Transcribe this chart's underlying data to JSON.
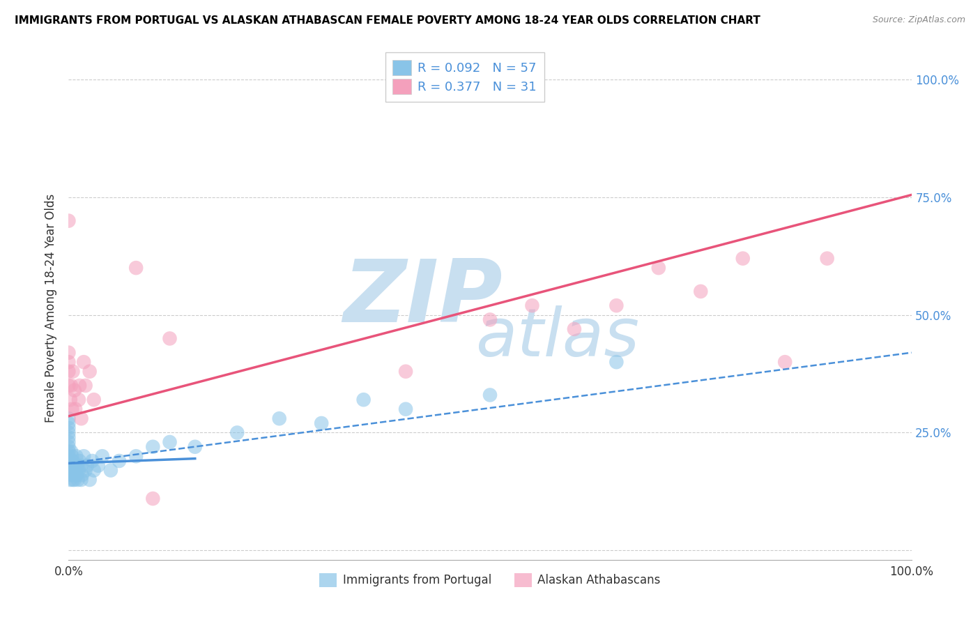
{
  "title": "IMMIGRANTS FROM PORTUGAL VS ALASKAN ATHABASCAN FEMALE POVERTY AMONG 18-24 YEAR OLDS CORRELATION CHART",
  "source": "Source: ZipAtlas.com",
  "ylabel": "Female Poverty Among 18-24 Year Olds",
  "xlim": [
    0,
    1.0
  ],
  "ylim": [
    -0.02,
    1.05
  ],
  "blue_color": "#89C4E8",
  "pink_color": "#F4A0BC",
  "blue_line_color": "#4A90D9",
  "pink_line_color": "#E8547A",
  "legend_R_blue": "R = 0.092",
  "legend_N_blue": "N = 57",
  "legend_R_pink": "R = 0.377",
  "legend_N_pink": "N = 31",
  "blue_scatter_x": [
    0.0,
    0.0,
    0.0,
    0.0,
    0.0,
    0.0,
    0.0,
    0.0,
    0.0,
    0.0,
    0.0,
    0.002,
    0.002,
    0.003,
    0.003,
    0.003,
    0.004,
    0.004,
    0.005,
    0.005,
    0.005,
    0.006,
    0.006,
    0.007,
    0.007,
    0.008,
    0.009,
    0.009,
    0.01,
    0.01,
    0.011,
    0.012,
    0.013,
    0.015,
    0.015,
    0.016,
    0.018,
    0.02,
    0.022,
    0.025,
    0.028,
    0.03,
    0.035,
    0.04,
    0.05,
    0.06,
    0.08,
    0.1,
    0.12,
    0.15,
    0.2,
    0.25,
    0.3,
    0.35,
    0.4,
    0.5,
    0.65
  ],
  "blue_scatter_y": [
    0.17,
    0.19,
    0.2,
    0.21,
    0.22,
    0.23,
    0.24,
    0.25,
    0.26,
    0.27,
    0.28,
    0.15,
    0.18,
    0.16,
    0.19,
    0.21,
    0.17,
    0.2,
    0.15,
    0.17,
    0.19,
    0.16,
    0.18,
    0.15,
    0.17,
    0.18,
    0.16,
    0.2,
    0.16,
    0.18,
    0.15,
    0.17,
    0.19,
    0.15,
    0.18,
    0.16,
    0.2,
    0.17,
    0.18,
    0.15,
    0.19,
    0.17,
    0.18,
    0.2,
    0.17,
    0.19,
    0.2,
    0.22,
    0.23,
    0.22,
    0.25,
    0.28,
    0.27,
    0.32,
    0.3,
    0.33,
    0.4
  ],
  "pink_scatter_x": [
    0.0,
    0.0,
    0.0,
    0.0,
    0.0,
    0.002,
    0.003,
    0.004,
    0.005,
    0.007,
    0.008,
    0.012,
    0.013,
    0.015,
    0.018,
    0.02,
    0.025,
    0.03,
    0.08,
    0.1,
    0.12,
    0.4,
    0.5,
    0.55,
    0.6,
    0.65,
    0.7,
    0.75,
    0.8,
    0.85,
    0.9
  ],
  "pink_scatter_y": [
    0.7,
    0.38,
    0.4,
    0.35,
    0.42,
    0.32,
    0.35,
    0.3,
    0.38,
    0.34,
    0.3,
    0.32,
    0.35,
    0.28,
    0.4,
    0.35,
    0.38,
    0.32,
    0.6,
    0.11,
    0.45,
    0.38,
    0.49,
    0.52,
    0.47,
    0.52,
    0.6,
    0.55,
    0.62,
    0.4,
    0.62
  ],
  "blue_line_x": [
    0.0,
    0.15
  ],
  "blue_line_y": [
    0.185,
    0.195
  ],
  "blue_dash_line_x": [
    0.0,
    1.0
  ],
  "blue_dash_line_y": [
    0.185,
    0.42
  ],
  "pink_line_x": [
    0.0,
    1.0
  ],
  "pink_line_y": [
    0.285,
    0.755
  ],
  "background_color": "#FFFFFF",
  "grid_color": "#CCCCCC",
  "watermark_color": "#C8DFF0"
}
